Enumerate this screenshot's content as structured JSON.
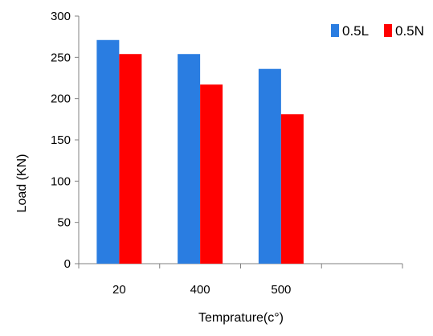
{
  "chart_data": {
    "type": "bar",
    "categories": [
      "20",
      "400",
      "500",
      ""
    ],
    "series": [
      {
        "name": "0.5L",
        "color": "#2a7de1",
        "values": [
          271,
          254,
          236,
          null
        ]
      },
      {
        "name": "0.5N",
        "color": "#ff0000",
        "values": [
          254,
          217,
          181,
          null
        ]
      }
    ],
    "title": "",
    "xlabel": "Temprature(c°)",
    "ylabel": "Load (KN)",
    "ylim": [
      0,
      300
    ],
    "yticks": [
      "0",
      "50",
      "100",
      "150",
      "200",
      "250",
      "300"
    ],
    "grid": false,
    "legend_position": "top-right"
  }
}
